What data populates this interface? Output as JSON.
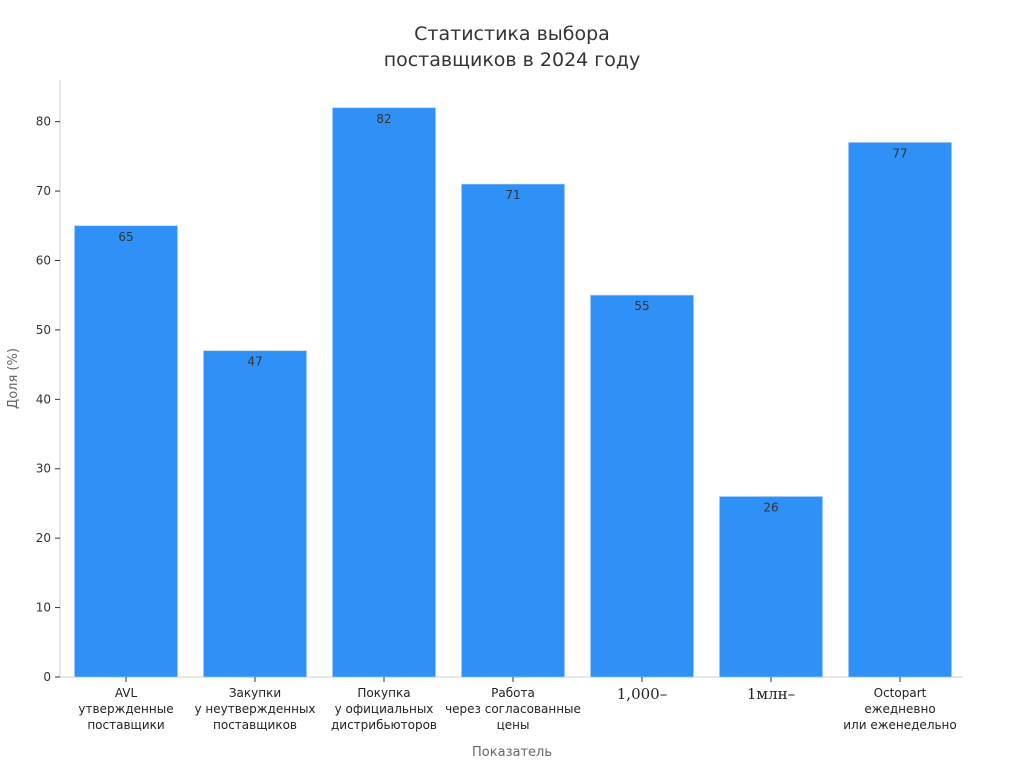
{
  "chart_data": {
    "type": "bar",
    "title": [
      "Статистика выбора",
      "поставщиков в 2024 году"
    ],
    "xlabel": "Показатель",
    "ylabel": "Доля (%)",
    "categories": [
      [
        "AVL",
        "утвержденные",
        "поставщики"
      ],
      [
        "Закупки",
        "у неутвержденных",
        "поставщиков"
      ],
      [
        "Покупка",
        "у официальных",
        "дистрибьюторов"
      ],
      [
        "Работа",
        "через согласованные",
        "цены"
      ],
      [
        "1,000–"
      ],
      [
        "1млн–"
      ],
      [
        "Octopart",
        "ежедневно",
        "или еженедельно"
      ]
    ],
    "values": [
      65,
      47,
      82,
      71,
      55,
      26,
      77
    ],
    "ylim": [
      0,
      86
    ],
    "yticks": [
      0,
      10,
      20,
      30,
      40,
      50,
      60,
      70,
      80
    ],
    "bar_color": "#2f91f7",
    "grid": false
  }
}
